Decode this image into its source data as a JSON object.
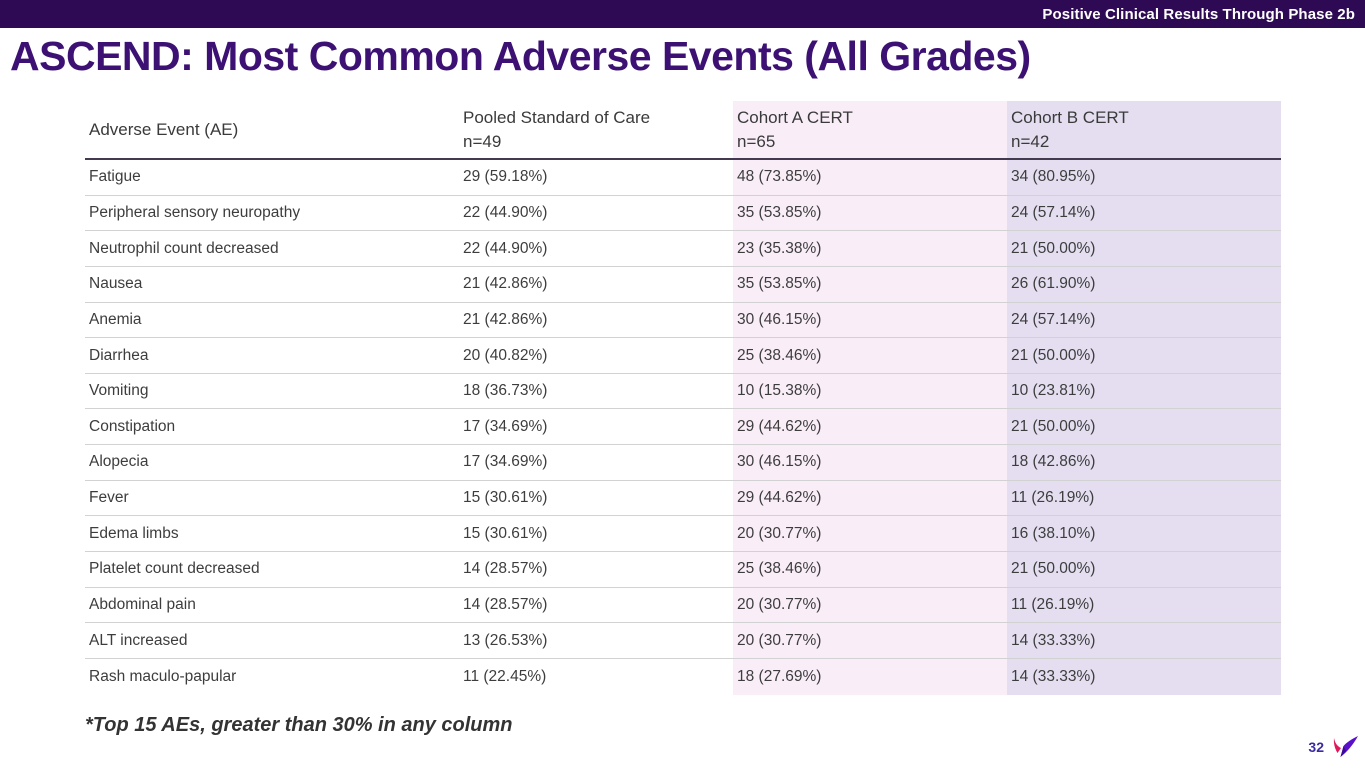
{
  "top_bar": {
    "label": "Positive Clinical Results Through Phase 2b",
    "bg_color": "#2e0a55"
  },
  "title": "ASCEND: Most Common Adverse Events (All Grades)",
  "table": {
    "columns": [
      {
        "label": "Adverse Event (AE)",
        "sub": ""
      },
      {
        "label": "Pooled Standard of Care",
        "sub": "n=49"
      },
      {
        "label": "Cohort A CERT",
        "sub": "n=65"
      },
      {
        "label": "Cohort B CERT",
        "sub": "n=42"
      }
    ],
    "rows": [
      [
        "Fatigue",
        "29 (59.18%)",
        "48 (73.85%)",
        "34 (80.95%)"
      ],
      [
        "Peripheral sensory neuropathy",
        "22 (44.90%)",
        "35 (53.85%)",
        "24 (57.14%)"
      ],
      [
        "Neutrophil count decreased",
        "22 (44.90%)",
        "23 (35.38%)",
        "21 (50.00%)"
      ],
      [
        "Nausea",
        "21 (42.86%)",
        "35 (53.85%)",
        "26 (61.90%)"
      ],
      [
        "Anemia",
        "21 (42.86%)",
        "30 (46.15%)",
        "24 (57.14%)"
      ],
      [
        "Diarrhea",
        "20 (40.82%)",
        "25 (38.46%)",
        "21 (50.00%)"
      ],
      [
        "Vomiting",
        "18 (36.73%)",
        "10 (15.38%)",
        "10 (23.81%)"
      ],
      [
        "Constipation",
        "17 (34.69%)",
        "29 (44.62%)",
        "21 (50.00%)"
      ],
      [
        "Alopecia",
        "17 (34.69%)",
        "30 (46.15%)",
        "18 (42.86%)"
      ],
      [
        "Fever",
        "15 (30.61%)",
        "29 (44.62%)",
        "11 (26.19%)"
      ],
      [
        "Edema limbs",
        "15 (30.61%)",
        "20 (30.77%)",
        "16 (38.10%)"
      ],
      [
        "Platelet count decreased",
        "14 (28.57%)",
        "25 (38.46%)",
        "21 (50.00%)"
      ],
      [
        "Abdominal pain",
        "14 (28.57%)",
        "20 (30.77%)",
        "11 (26.19%)"
      ],
      [
        "ALT increased",
        "13 (26.53%)",
        "20 (30.77%)",
        "14 (33.33%)"
      ],
      [
        "Rash maculo-papular",
        "11 (22.45%)",
        "18 (27.69%)",
        "14 (33.33%)"
      ]
    ]
  },
  "footnote": "*Top 15 AEs, greater than 30% in any column",
  "page_number": "32",
  "logo": {
    "name": "bird-logo",
    "colors": [
      "#e0175a",
      "#5a10c9"
    ]
  },
  "colors": {
    "title": "#3c1173",
    "cohort_a_bg": "#f9eef8",
    "cohort_b_bg": "#e4def0",
    "header_rule": "#443a4f",
    "row_rule": "#d2d2d2",
    "page_number": "#3a2ba0"
  }
}
